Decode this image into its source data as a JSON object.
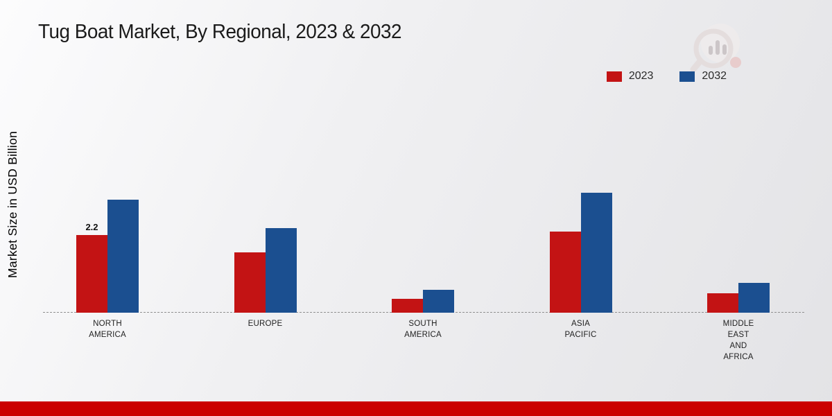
{
  "title": "Tug Boat Market, By Regional, 2023 & 2032",
  "watermark_icon": "magnifier-bar-chart-logo",
  "colors": {
    "footer_bar": "#cb0100",
    "series_2023": "#c31314",
    "series_2032": "#1b4f90",
    "baseline": "#8f8f8f"
  },
  "chart_data": {
    "type": "bar",
    "title": "Tug Boat Market, By Regional, 2023 & 2032",
    "xlabel": "",
    "ylabel": "Market Size in USD Billion",
    "categories": [
      "NORTH AMERICA",
      "EUROPE",
      "SOUTH AMERICA",
      "ASIA PACIFIC",
      "MIDDLE EAST AND AFRICA"
    ],
    "category_lines": [
      [
        "NORTH",
        "AMERICA"
      ],
      [
        "EUROPE"
      ],
      [
        "SOUTH",
        "AMERICA"
      ],
      [
        "ASIA",
        "PACIFIC"
      ],
      [
        "MIDDLE",
        "EAST",
        "AND",
        "AFRICA"
      ]
    ],
    "series": [
      {
        "name": "2023",
        "color": "#c31314",
        "values": [
          2.2,
          1.7,
          0.4,
          2.3,
          0.55
        ]
      },
      {
        "name": "2032",
        "color": "#1b4f90",
        "values": [
          3.2,
          2.4,
          0.65,
          3.4,
          0.85
        ]
      }
    ],
    "ylim": [
      0,
      4.4
    ],
    "grid": false,
    "legend_position": "top-right",
    "baseline_style": "dashed",
    "annotations": [
      {
        "series_index": 0,
        "category_index": 0,
        "text": "2.2"
      }
    ]
  }
}
